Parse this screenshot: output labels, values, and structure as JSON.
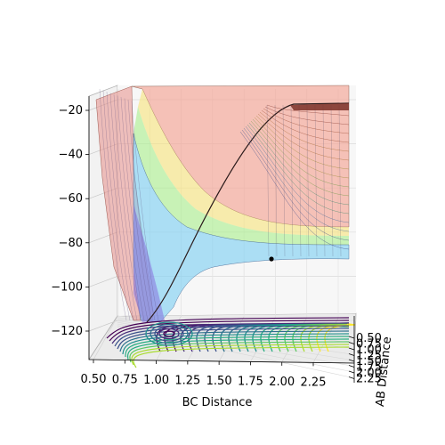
{
  "chart_data": {
    "type": "surface",
    "xlabel": "BC Distance",
    "ylabel": "AB Distance",
    "zlabel": "",
    "x_ticks": [
      "0.50",
      "0.75",
      "1.00",
      "1.25",
      "1.50",
      "1.75",
      "2.00",
      "2.25"
    ],
    "y_ticks": [
      "0.50",
      "0.75",
      "1.00",
      "1.25",
      "1.50",
      "1.75",
      "2.00",
      "2.25"
    ],
    "z_ticks": [
      "−20",
      "−40",
      "−60",
      "−80",
      "−100",
      "−120"
    ],
    "xlim": [
      0.5,
      2.5
    ],
    "ylim": [
      0.5,
      2.5
    ],
    "zlim": [
      -135,
      -15
    ],
    "grid": true,
    "colormap_surface": "rainbow (translucent)",
    "colormap_contour": "viridis",
    "description_values": {
      "well_depth": -130,
      "plateau_energy": -88,
      "marker_point": {
        "bc": 1.9,
        "energy": -88
      }
    }
  }
}
